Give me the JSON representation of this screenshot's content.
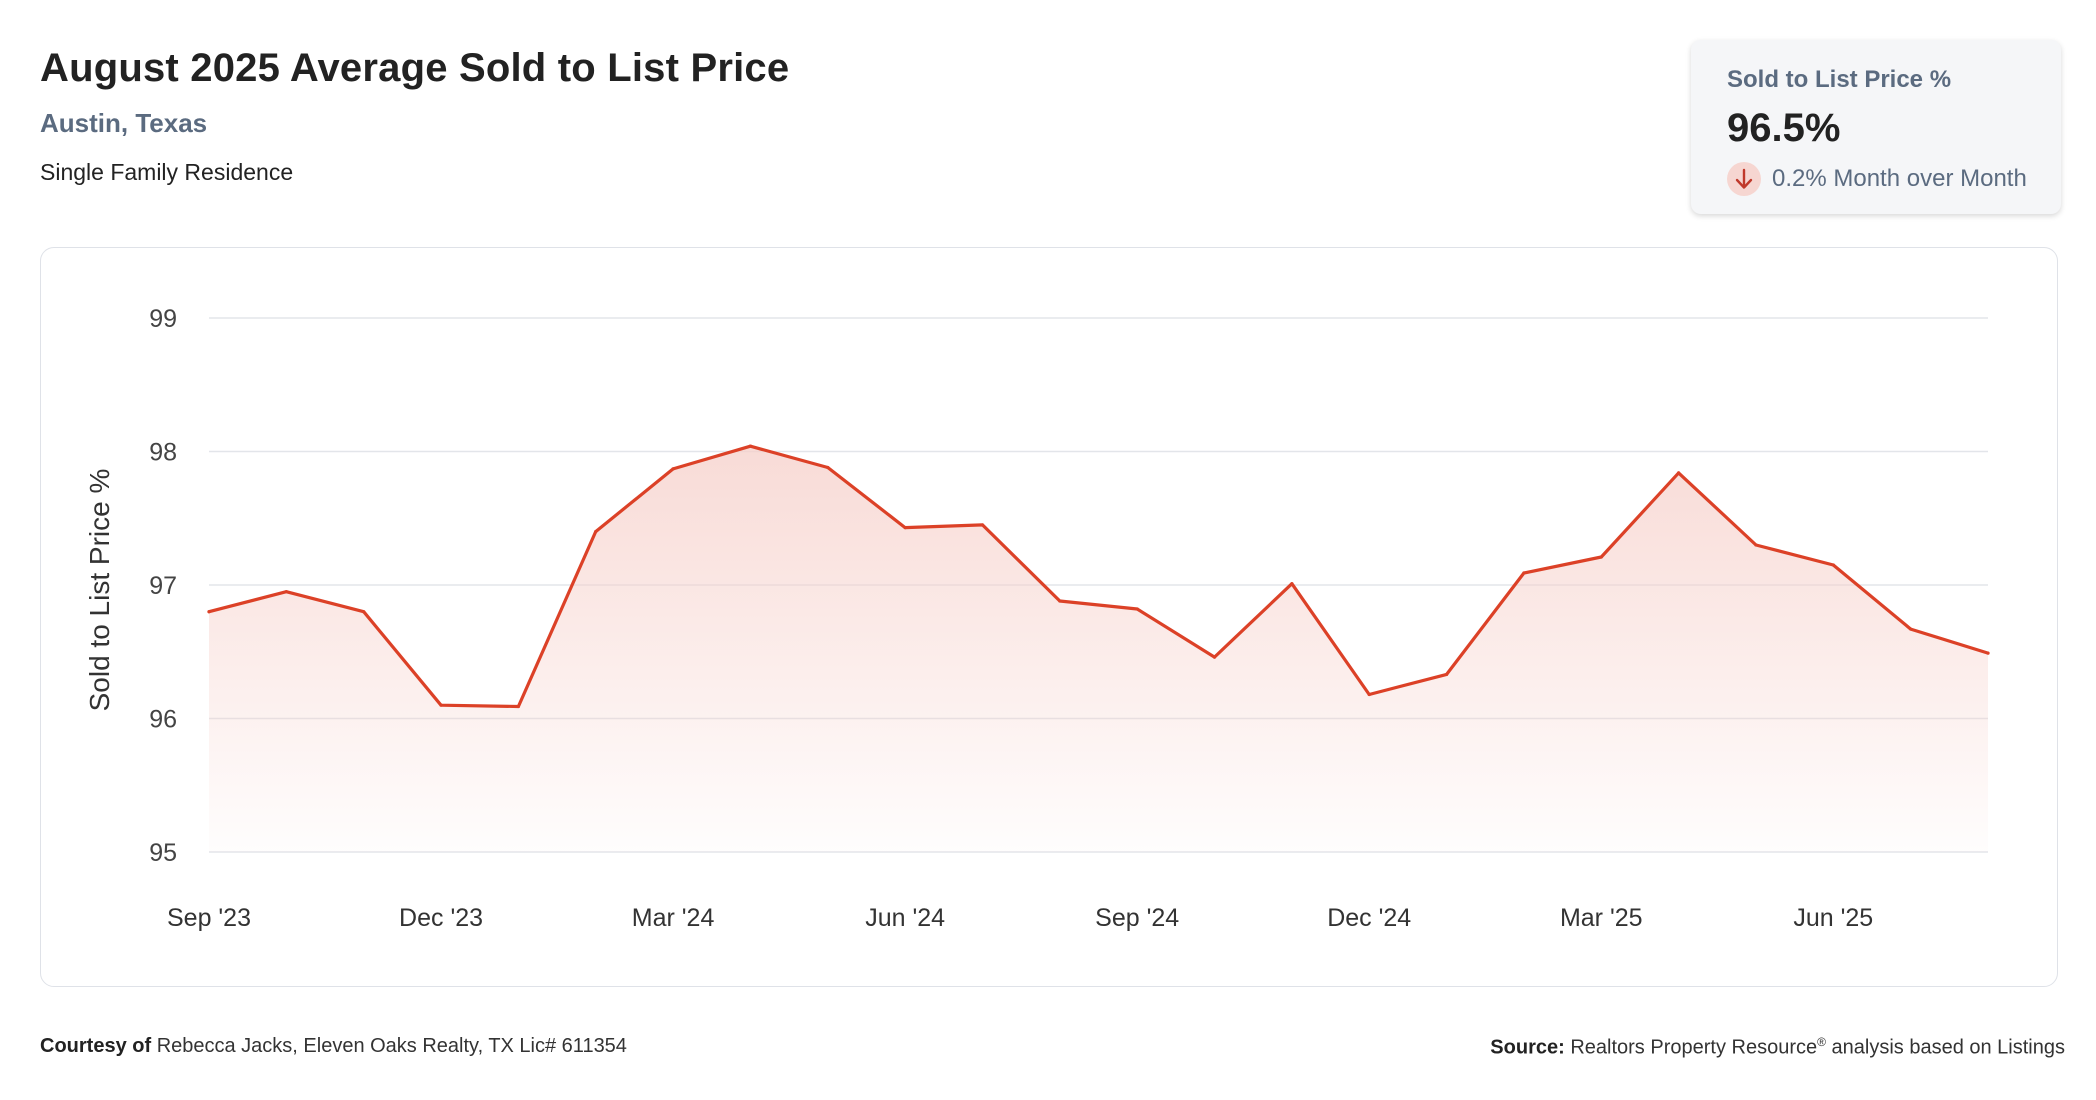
{
  "header": {
    "title": "August 2025 Average Sold to List Price",
    "location": "Austin, Texas",
    "property_type": "Single Family Residence"
  },
  "kpi": {
    "label": "Sold to List Price %",
    "value": "96.5%",
    "change": "0.2% Month over Month",
    "direction_icon": "arrow-down-icon"
  },
  "colors": {
    "line": "#dc4127",
    "fill": "#f6cfc9",
    "grid": "#e3e5ea",
    "muted_text": "#5b6b80"
  },
  "footer": {
    "courtesy_label": "Courtesy of",
    "courtesy_text": "Rebecca Jacks, Eleven Oaks Realty, TX Lic# 611354",
    "source_label": "Source:",
    "source_text_a": "Realtors Property Resource",
    "source_mark": "®",
    "source_text_b": "analysis based on Listings"
  },
  "chart_data": {
    "type": "area",
    "ylabel": "Sold to List Price %",
    "ylim": [
      95,
      99
    ],
    "yticks": [
      95,
      96,
      97,
      98,
      99
    ],
    "grid": true,
    "xtick_labels": [
      "Sep '23",
      "Dec '23",
      "Mar '24",
      "Jun '24",
      "Sep '24",
      "Dec '24",
      "Mar '25",
      "Jun '25"
    ],
    "xtick_indices": [
      0,
      3,
      6,
      9,
      12,
      15,
      18,
      21
    ],
    "x": [
      "Sep '23",
      "Oct '23",
      "Nov '23",
      "Dec '23",
      "Jan '24",
      "Feb '24",
      "Mar '24",
      "Apr '24",
      "May '24",
      "Jun '24",
      "Jul '24",
      "Aug '24",
      "Sep '24",
      "Oct '24",
      "Nov '24",
      "Dec '24",
      "Jan '25",
      "Feb '25",
      "Mar '25",
      "Apr '25",
      "May '25",
      "Jun '25",
      "Jul '25",
      "Aug '25"
    ],
    "series": [
      {
        "values": [
          96.8,
          96.95,
          96.8,
          96.1,
          96.09,
          97.4,
          97.87,
          98.04,
          97.88,
          97.43,
          97.45,
          96.88,
          96.82,
          96.46,
          97.01,
          96.18,
          96.33,
          97.09,
          97.21,
          97.84,
          97.3,
          97.15,
          96.67,
          96.49
        ]
      }
    ]
  }
}
